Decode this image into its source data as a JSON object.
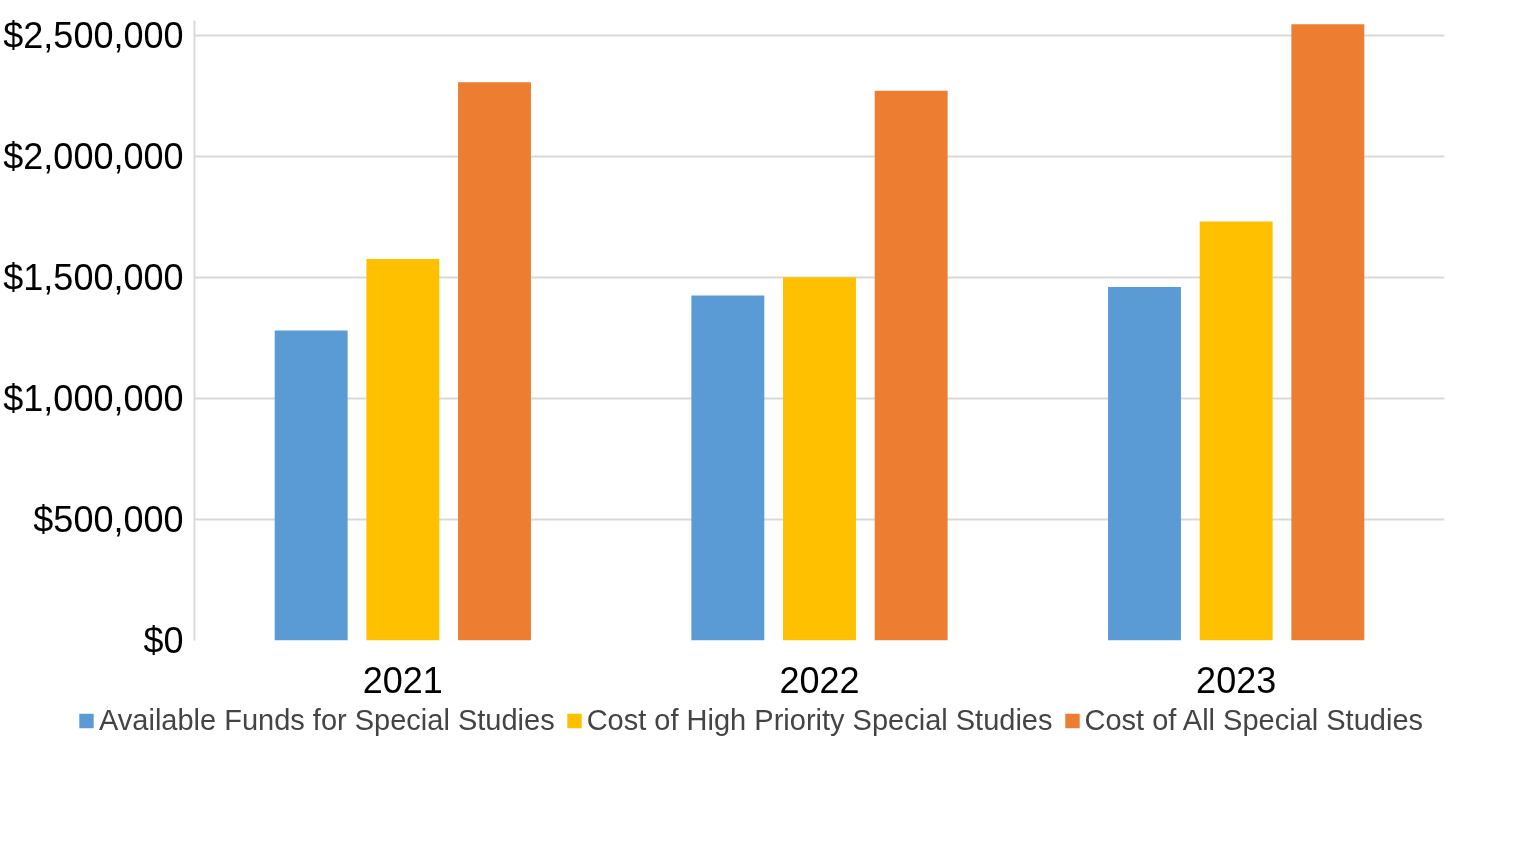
{
  "chart_data": {
    "type": "bar",
    "categories": [
      "2021",
      "2022",
      "2023"
    ],
    "series": [
      {
        "name": "Available Funds for Special Studies",
        "color": "#5b9bd5",
        "values": [
          1280000,
          1425000,
          1460000
        ]
      },
      {
        "name": "Cost of High Priority Special Studies",
        "color": "#ffc000",
        "values": [
          1575000,
          1500000,
          1730000
        ]
      },
      {
        "name": "Cost of All Special Studies",
        "color": "#ed7d31",
        "values": [
          2305000,
          2270000,
          2545000
        ]
      }
    ],
    "ylim": [
      0,
      2560000
    ],
    "yticks": [
      {
        "value": 0,
        "label": "$0"
      },
      {
        "value": 500000,
        "label": "$500,000"
      },
      {
        "value": 1000000,
        "label": "$1,000,000"
      },
      {
        "value": 1500000,
        "label": "$1,500,000"
      },
      {
        "value": 2000000,
        "label": "$2,000,000"
      },
      {
        "value": 2500000,
        "label": "$2,500,000"
      }
    ],
    "grid": "y",
    "legend": "bottom"
  }
}
